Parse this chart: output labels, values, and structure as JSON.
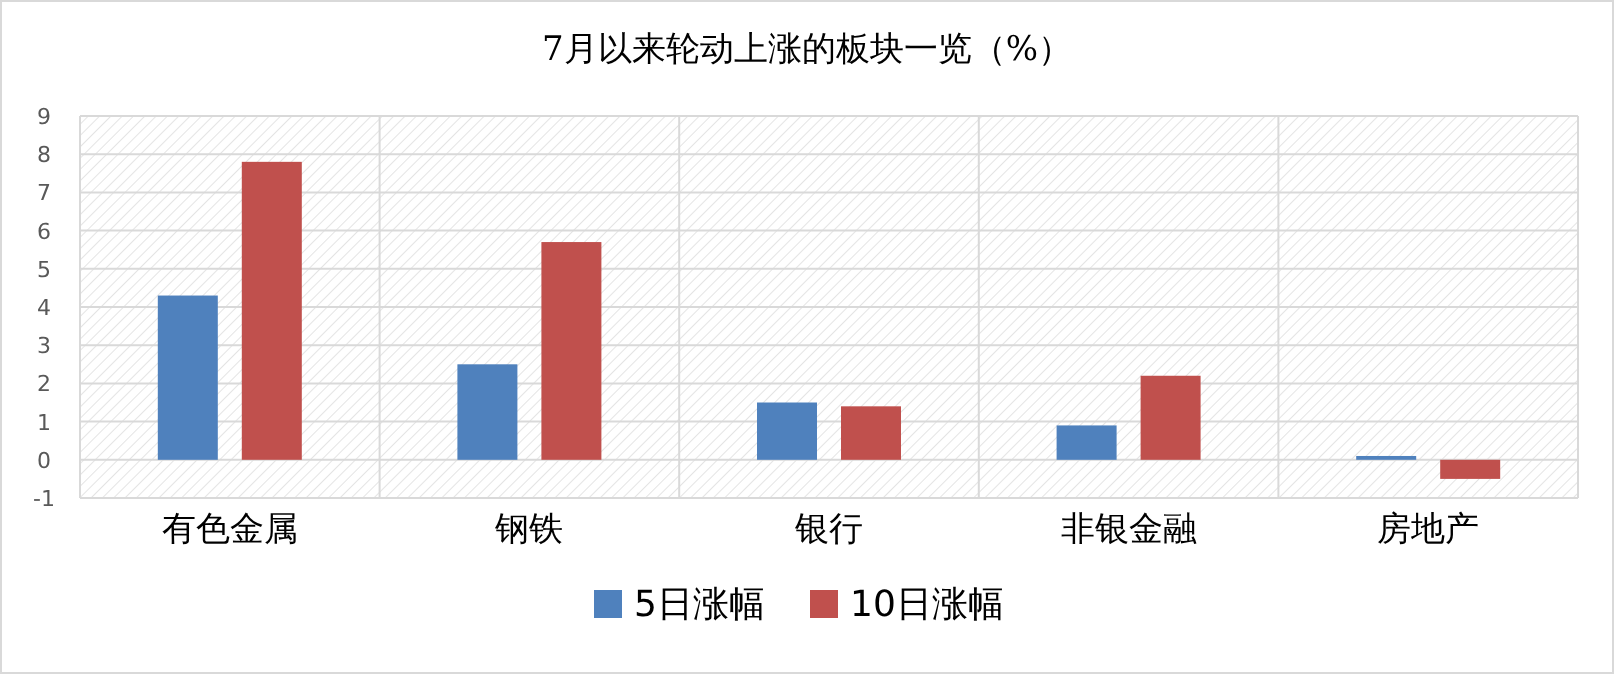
{
  "chart_data": {
    "type": "bar",
    "title": "7月以来轮动上涨的板块一览（%）",
    "categories": [
      "有色金属",
      "钢铁",
      "银行",
      "非银金融",
      "房地产"
    ],
    "series": [
      {
        "name": "5日涨幅",
        "color": "#4f81bd",
        "values": [
          4.3,
          2.5,
          1.5,
          0.9,
          0.1
        ]
      },
      {
        "name": "10日涨幅",
        "color": "#c0504d",
        "values": [
          7.8,
          5.7,
          1.4,
          2.2,
          -0.5
        ]
      }
    ],
    "ylim": [
      -1,
      9
    ],
    "yticks": [
      -1,
      0,
      1,
      2,
      3,
      4,
      5,
      6,
      7,
      8,
      9
    ],
    "grid": true,
    "legend": "bottom"
  }
}
